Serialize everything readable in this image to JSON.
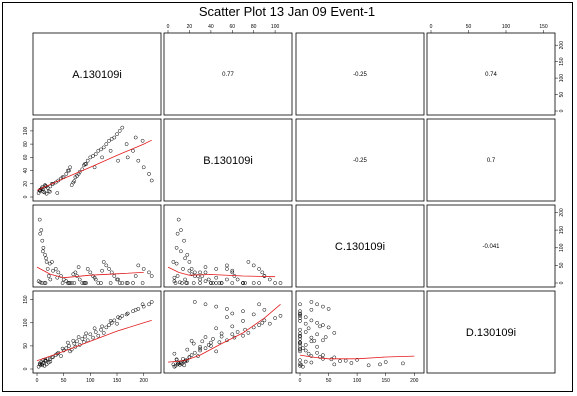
{
  "chart_data": {
    "type": "scatter",
    "title": "Scatter Plot 13 Jan 09 Event-1",
    "variables": [
      "A.130109i",
      "B.130109i",
      "C.130109i",
      "D.130109i"
    ],
    "correlations": {
      "A-B": "0.77",
      "A-C": "-0.25",
      "A-D": "0.74",
      "B-C": "-0.25",
      "B-D": "0.7",
      "C-D": "-0.041"
    },
    "ticks": {
      "A": [
        0,
        50,
        100,
        150,
        200
      ],
      "B": [
        0,
        20,
        40,
        60,
        80,
        100
      ],
      "C": [
        0,
        50,
        100,
        150,
        200
      ],
      "D": [
        0,
        50,
        100,
        150
      ]
    },
    "axis_ranges": {
      "A": [
        0,
        225
      ],
      "B": [
        0,
        112
      ],
      "C": [
        0,
        210
      ],
      "D": [
        0,
        160
      ]
    },
    "points": {
      "A": [
        5,
        8,
        10,
        12,
        15,
        18,
        20,
        22,
        25,
        3,
        6,
        9,
        14,
        16,
        28,
        35,
        40,
        45,
        50,
        55,
        60,
        62,
        65,
        70,
        72,
        75,
        80,
        85,
        88,
        90,
        95,
        100,
        105,
        110,
        115,
        120,
        125,
        130,
        135,
        140,
        145,
        150,
        155,
        160,
        170,
        180,
        190,
        200,
        210,
        215,
        6,
        11,
        17,
        24,
        30,
        38,
        48,
        58,
        68,
        78,
        92,
        108,
        122,
        138,
        152,
        168,
        185,
        198
      ],
      "B": [
        10,
        12,
        15,
        8,
        18,
        5,
        14,
        9,
        16,
        6,
        11,
        13,
        7,
        17,
        20,
        22,
        25,
        28,
        30,
        35,
        40,
        45,
        18,
        24,
        30,
        32,
        38,
        42,
        48,
        50,
        55,
        60,
        62,
        65,
        70,
        72,
        75,
        80,
        85,
        88,
        90,
        95,
        100,
        105,
        60,
        70,
        55,
        45,
        35,
        25,
        9,
        12,
        16,
        8,
        20,
        6,
        30,
        40,
        22,
        35,
        50,
        45,
        60,
        70,
        55,
        80,
        90,
        85
      ],
      "C": [
        180,
        150,
        120,
        100,
        80,
        60,
        40,
        20,
        10,
        5,
        2,
        0,
        0,
        0,
        60,
        40,
        30,
        20,
        10,
        5,
        0,
        0,
        0,
        0,
        30,
        20,
        10,
        0,
        0,
        0,
        40,
        30,
        20,
        10,
        0,
        0,
        60,
        50,
        40,
        30,
        20,
        10,
        0,
        0,
        0,
        0,
        50,
        40,
        30,
        20,
        140,
        90,
        70,
        55,
        35,
        15,
        0,
        0,
        25,
        45,
        0,
        15,
        35,
        0,
        10,
        0,
        20,
        0
      ],
      "D": [
        12,
        15,
        8,
        20,
        18,
        10,
        22,
        14,
        16,
        5,
        9,
        11,
        7,
        19,
        25,
        30,
        35,
        28,
        40,
        45,
        50,
        38,
        42,
        55,
        48,
        60,
        52,
        65,
        58,
        70,
        62,
        75,
        68,
        80,
        72,
        85,
        78,
        90,
        95,
        100,
        105,
        98,
        110,
        115,
        120,
        125,
        130,
        135,
        140,
        145,
        10,
        13,
        17,
        21,
        26,
        33,
        44,
        57,
        61,
        69,
        77,
        88,
        92,
        104,
        112,
        118,
        128,
        140
      ]
    },
    "smoother": {
      "A-B": [
        [
          0,
          10
        ],
        [
          50,
          28
        ],
        [
          100,
          45
        ],
        [
          150,
          63
        ],
        [
          200,
          80
        ],
        [
          215,
          86
        ]
      ],
      "A-C": [
        [
          0,
          45
        ],
        [
          25,
          25
        ],
        [
          50,
          15
        ],
        [
          100,
          22
        ],
        [
          150,
          26
        ],
        [
          200,
          30
        ]
      ],
      "A-D": [
        [
          0,
          18
        ],
        [
          50,
          38
        ],
        [
          100,
          60
        ],
        [
          150,
          82
        ],
        [
          200,
          100
        ],
        [
          215,
          105
        ]
      ],
      "B-C": [
        [
          0,
          45
        ],
        [
          10,
          30
        ],
        [
          20,
          22
        ],
        [
          40,
          24
        ],
        [
          70,
          20
        ],
        [
          100,
          18
        ]
      ],
      "B-D": [
        [
          0,
          15
        ],
        [
          15,
          18
        ],
        [
          30,
          30
        ],
        [
          50,
          55
        ],
        [
          70,
          78
        ],
        [
          90,
          110
        ],
        [
          105,
          140
        ]
      ],
      "C-D": [
        [
          0,
          30
        ],
        [
          25,
          25
        ],
        [
          50,
          22
        ],
        [
          100,
          22
        ],
        [
          150,
          26
        ],
        [
          200,
          28
        ]
      ]
    },
    "xlabel": "",
    "ylabel": "",
    "grid": false
  },
  "colors": {
    "points": "#000000",
    "smoother": "#e31a1c",
    "panel_border": "#000000",
    "background": "#ffffff"
  }
}
